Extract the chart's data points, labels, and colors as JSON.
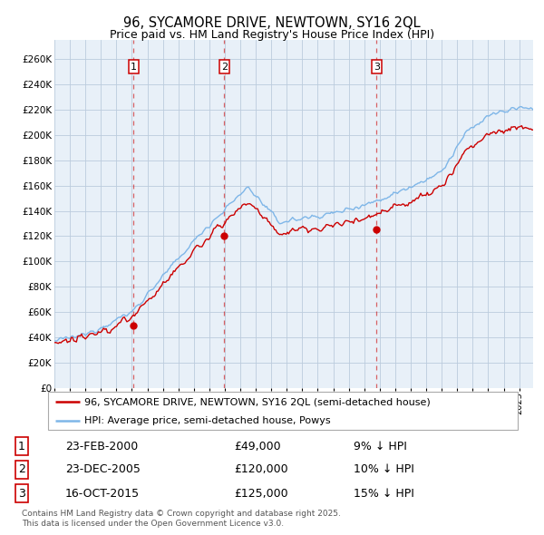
{
  "title": "96, SYCAMORE DRIVE, NEWTOWN, SY16 2QL",
  "subtitle": "Price paid vs. HM Land Registry's House Price Index (HPI)",
  "ylabel_ticks": [
    0,
    20000,
    40000,
    60000,
    80000,
    100000,
    120000,
    140000,
    160000,
    180000,
    200000,
    220000,
    240000,
    260000
  ],
  "ylabel_labels": [
    "£0",
    "£20K",
    "£40K",
    "£60K",
    "£80K",
    "£100K",
    "£120K",
    "£140K",
    "£160K",
    "£180K",
    "£200K",
    "£220K",
    "£240K",
    "£260K"
  ],
  "ylim": [
    0,
    275000
  ],
  "xlim_start": 1995.0,
  "xlim_end": 2025.9,
  "hpi_color": "#7EB6E8",
  "price_color": "#CC0000",
  "chart_bg": "#E8F0F8",
  "sale_dates": [
    2000.12,
    2005.97,
    2015.79
  ],
  "sale_prices": [
    49000,
    120000,
    125000
  ],
  "sale_labels": [
    "1",
    "2",
    "3"
  ],
  "sale_date_strs": [
    "23-FEB-2000",
    "23-DEC-2005",
    "16-OCT-2015"
  ],
  "sale_price_strs": [
    "£49,000",
    "£120,000",
    "£125,000"
  ],
  "sale_pct_strs": [
    "9% ↓ HPI",
    "10% ↓ HPI",
    "15% ↓ HPI"
  ],
  "legend_line1": "96, SYCAMORE DRIVE, NEWTOWN, SY16 2QL (semi-detached house)",
  "legend_line2": "HPI: Average price, semi-detached house, Powys",
  "footer": "Contains HM Land Registry data © Crown copyright and database right 2025.\nThis data is licensed under the Open Government Licence v3.0.",
  "background_color": "#FFFFFF",
  "grid_color": "#BBCCDD",
  "title_fontsize": 10.5,
  "subtitle_fontsize": 9
}
